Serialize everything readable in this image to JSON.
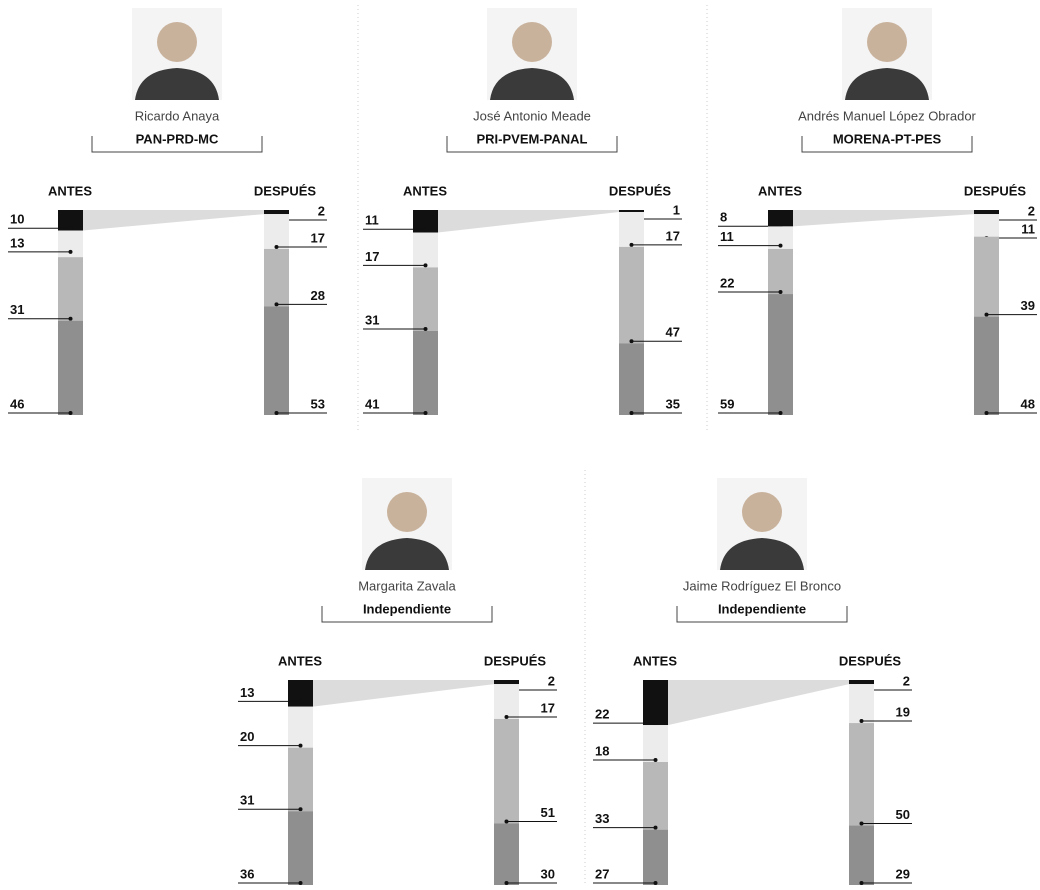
{
  "chart_data": [
    {
      "type": "stacked-bar",
      "name": "Ricardo Anaya",
      "party": "PAN-PRD-MC",
      "categories": [
        "ANTES",
        "DESPUÉS"
      ],
      "series": [
        {
          "color": "#111111",
          "values": [
            10,
            2
          ]
        },
        {
          "color": "#ececec",
          "values": [
            13,
            17
          ]
        },
        {
          "color": "#b8b8b8",
          "values": [
            31,
            28
          ]
        },
        {
          "color": "#8f8f8f",
          "values": [
            46,
            53
          ]
        }
      ]
    },
    {
      "type": "stacked-bar",
      "name": "José Antonio Meade",
      "party": "PRI-PVEM-PANAL",
      "categories": [
        "ANTES",
        "DESPUÉS"
      ],
      "series": [
        {
          "color": "#111111",
          "values": [
            11,
            1
          ]
        },
        {
          "color": "#ececec",
          "values": [
            17,
            17
          ]
        },
        {
          "color": "#b8b8b8",
          "values": [
            31,
            47
          ]
        },
        {
          "color": "#8f8f8f",
          "values": [
            41,
            35
          ]
        }
      ]
    },
    {
      "type": "stacked-bar",
      "name": "Andrés Manuel López Obrador",
      "party": "MORENA-PT-PES",
      "categories": [
        "ANTES",
        "DESPUÉS"
      ],
      "series": [
        {
          "color": "#111111",
          "values": [
            8,
            2
          ]
        },
        {
          "color": "#ececec",
          "values": [
            11,
            11
          ]
        },
        {
          "color": "#b8b8b8",
          "values": [
            22,
            39
          ]
        },
        {
          "color": "#8f8f8f",
          "values": [
            59,
            48
          ]
        }
      ]
    },
    {
      "type": "stacked-bar",
      "name": "Margarita Zavala",
      "party": "Independiente",
      "categories": [
        "ANTES",
        "DESPUÉS"
      ],
      "series": [
        {
          "color": "#111111",
          "values": [
            13,
            2
          ]
        },
        {
          "color": "#ececec",
          "values": [
            20,
            17
          ]
        },
        {
          "color": "#b8b8b8",
          "values": [
            31,
            51
          ]
        },
        {
          "color": "#8f8f8f",
          "values": [
            36,
            30
          ]
        }
      ]
    },
    {
      "type": "stacked-bar",
      "name": "Jaime Rodríguez El Bronco",
      "party": "Independiente",
      "categories": [
        "ANTES",
        "DESPUÉS"
      ],
      "series": [
        {
          "color": "#111111",
          "values": [
            22,
            2
          ]
        },
        {
          "color": "#ececec",
          "values": [
            18,
            19
          ]
        },
        {
          "color": "#b8b8b8",
          "values": [
            33,
            50
          ]
        },
        {
          "color": "#8f8f8f",
          "values": [
            27,
            29
          ]
        }
      ]
    }
  ]
}
